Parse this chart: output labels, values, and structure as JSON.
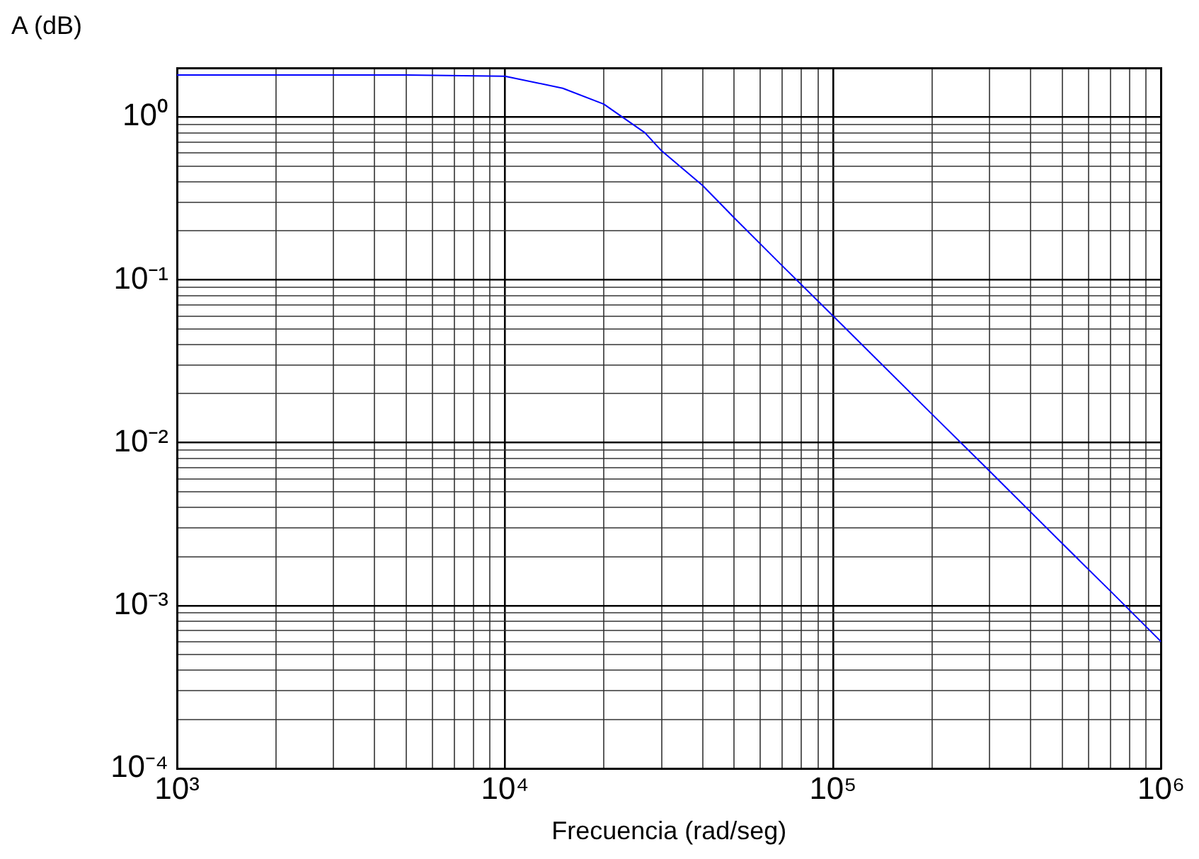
{
  "chart_data": {
    "type": "line",
    "xlabel": "Frecuencia (rad/seg)",
    "ylabel": "A (dB)",
    "log": "xy",
    "grid": true,
    "legend": false,
    "marker": "none",
    "line_style": "solid",
    "x": [
      1000,
      5000,
      10000,
      15000,
      20000,
      26700,
      30000,
      40000,
      50000,
      70000,
      100000,
      200000,
      300000,
      500000,
      700000,
      1000000
    ],
    "series": [
      {
        "color": "#0000ff",
        "values": [
          1.81,
          1.81,
          1.78,
          1.5,
          1.2,
          0.8,
          0.62,
          0.38,
          0.24,
          0.122,
          0.06,
          0.015,
          0.0067,
          0.0024,
          0.00123,
          0.0006
        ]
      }
    ],
    "xlim": [
      1000,
      1000000
    ],
    "ylim": [
      0.0001,
      2
    ],
    "xticks": [
      {
        "value": 1000,
        "label": "10³"
      },
      {
        "value": 2000,
        "label": null
      },
      {
        "value": 3000,
        "label": null
      },
      {
        "value": 4000,
        "label": null
      },
      {
        "value": 5000,
        "label": null
      },
      {
        "value": 6000,
        "label": null
      },
      {
        "value": 7000,
        "label": null
      },
      {
        "value": 8000,
        "label": null
      },
      {
        "value": 9000,
        "label": null
      },
      {
        "value": 10000,
        "label": "10⁴"
      },
      {
        "value": 20000,
        "label": null
      },
      {
        "value": 30000,
        "label": null
      },
      {
        "value": 40000,
        "label": null
      },
      {
        "value": 50000,
        "label": null
      },
      {
        "value": 60000,
        "label": null
      },
      {
        "value": 70000,
        "label": null
      },
      {
        "value": 80000,
        "label": null
      },
      {
        "value": 90000,
        "label": null
      },
      {
        "value": 100000,
        "label": "10⁵"
      },
      {
        "value": 200000,
        "label": null
      },
      {
        "value": 300000,
        "label": null
      },
      {
        "value": 400000,
        "label": null
      },
      {
        "value": 500000,
        "label": null
      },
      {
        "value": 600000,
        "label": null
      },
      {
        "value": 700000,
        "label": null
      },
      {
        "value": 800000,
        "label": null
      },
      {
        "value": 900000,
        "label": null
      },
      {
        "value": 1000000,
        "label": "10⁶"
      }
    ],
    "yticks": [
      {
        "value": 0.0001,
        "label": "10⁻⁴"
      },
      {
        "value": 0.0002,
        "label": null
      },
      {
        "value": 0.0003,
        "label": null
      },
      {
        "value": 0.0004,
        "label": null
      },
      {
        "value": 0.0005,
        "label": null
      },
      {
        "value": 0.0006,
        "label": null
      },
      {
        "value": 0.0007,
        "label": null
      },
      {
        "value": 0.0008,
        "label": null
      },
      {
        "value": 0.0009,
        "label": null
      },
      {
        "value": 0.001,
        "label": "10⁻³"
      },
      {
        "value": 0.002,
        "label": null
      },
      {
        "value": 0.003,
        "label": null
      },
      {
        "value": 0.004,
        "label": null
      },
      {
        "value": 0.005,
        "label": null
      },
      {
        "value": 0.006,
        "label": null
      },
      {
        "value": 0.007,
        "label": null
      },
      {
        "value": 0.008,
        "label": null
      },
      {
        "value": 0.009,
        "label": null
      },
      {
        "value": 0.01,
        "label": "10⁻²"
      },
      {
        "value": 0.02,
        "label": null
      },
      {
        "value": 0.03,
        "label": null
      },
      {
        "value": 0.04,
        "label": null
      },
      {
        "value": 0.05,
        "label": null
      },
      {
        "value": 0.06,
        "label": null
      },
      {
        "value": 0.07,
        "label": null
      },
      {
        "value": 0.08,
        "label": null
      },
      {
        "value": 0.09,
        "label": null
      },
      {
        "value": 0.1,
        "label": "10⁻¹"
      },
      {
        "value": 0.2,
        "label": null
      },
      {
        "value": 0.3,
        "label": null
      },
      {
        "value": 0.4,
        "label": null
      },
      {
        "value": 0.5,
        "label": null
      },
      {
        "value": 0.6,
        "label": null
      },
      {
        "value": 0.7,
        "label": null
      },
      {
        "value": 0.8,
        "label": null
      },
      {
        "value": 0.9,
        "label": null
      },
      {
        "value": 1,
        "label": "10⁰"
      }
    ]
  }
}
